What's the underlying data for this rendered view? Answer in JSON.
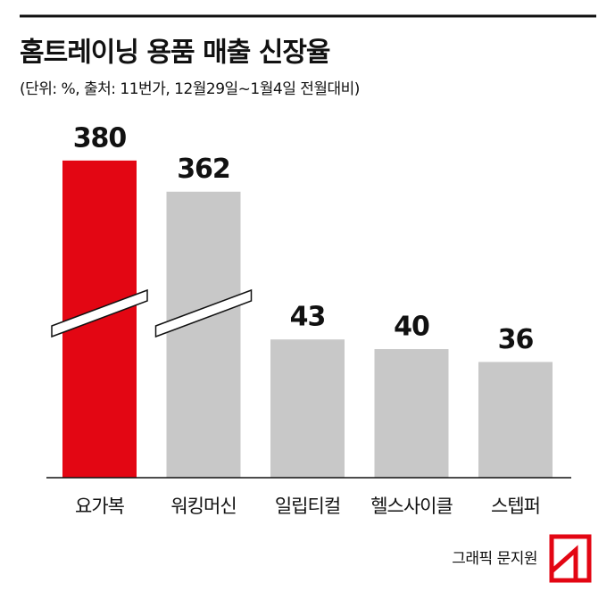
{
  "chart_data": {
    "type": "bar",
    "title": "홈트레이닝 용품 매출 신장율",
    "subtitle": "(단위: %, 출처: 11번가, 12월29일~1월4일 전월대비)",
    "categories": [
      "요가복",
      "워킹머신",
      "일립티컬",
      "헬스사이클",
      "스텝퍼"
    ],
    "values": [
      380,
      362,
      43,
      40,
      36
    ],
    "colors": [
      "#e30613",
      "#c8c8c8",
      "#c8c8c8",
      "#c8c8c8",
      "#c8c8c8"
    ],
    "axis_break": true,
    "source": "그래픽 문지원"
  }
}
